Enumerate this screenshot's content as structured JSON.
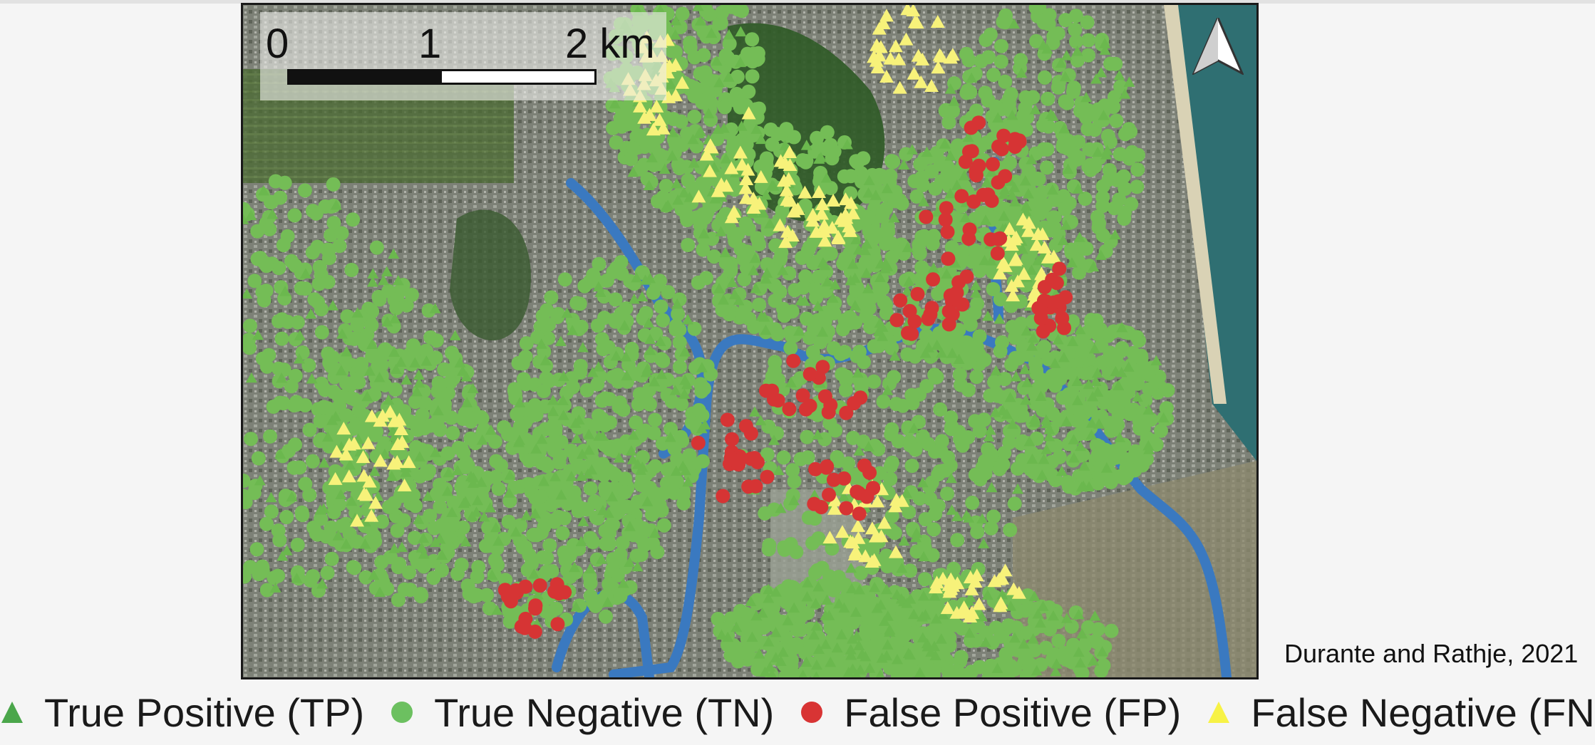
{
  "map": {
    "scale": {
      "tick0": "0",
      "tick1": "1",
      "tick2": "2 km"
    },
    "north_arrow": "north-arrow-icon",
    "colors": {
      "river": "#3a79c0",
      "true_positive": "#6bb84e",
      "true_negative": "#74bd56",
      "false_positive": "#d63434",
      "false_negative": "#f7f27a"
    }
  },
  "credit": "Durante and Rathje, 2021",
  "legend": [
    {
      "symbol": "triangle",
      "color": "#4aa64a",
      "label": "True Positive (TP)"
    },
    {
      "symbol": "circle",
      "color": "#6cc060",
      "label": "True Negative (TN)"
    },
    {
      "symbol": "circle",
      "color": "#d83434",
      "label": "False Positive (FP)"
    },
    {
      "symbol": "triangle",
      "color": "#f7f245",
      "label": "False Negative (FN)"
    }
  ]
}
